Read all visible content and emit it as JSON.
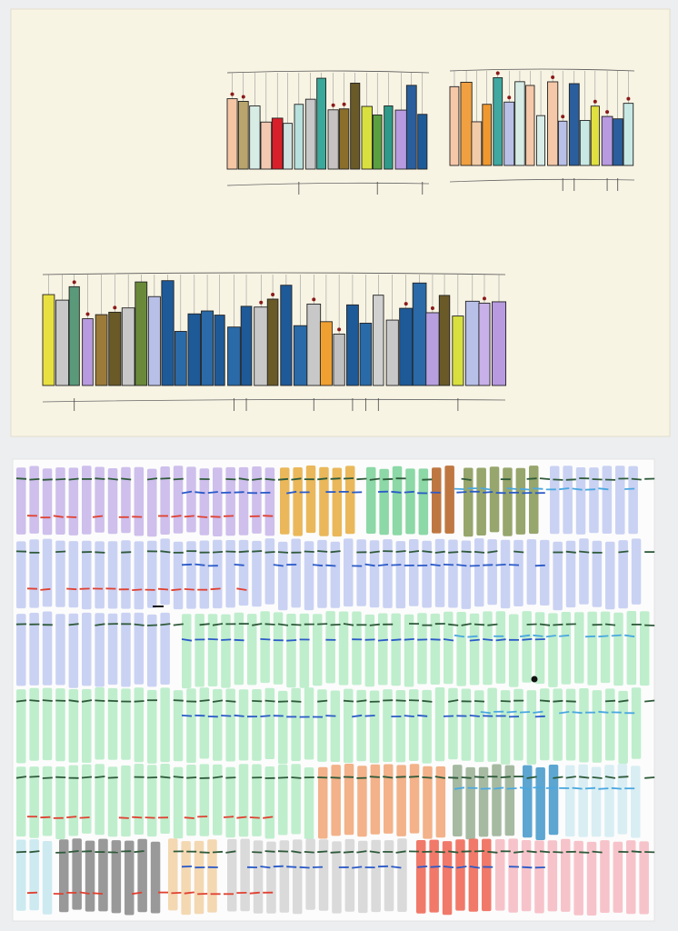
{
  "artwork": {
    "top_sheet": {
      "paper_color": "#f8f4e4",
      "groups": [
        {
          "name": "upper-left-cluster",
          "colors": [
            "#f6c6a4",
            "#b8a46c",
            "#d8ece6",
            "#f2c8b0",
            "#d8202a",
            "#cfe4e0",
            "#b8e0dc",
            "#c8c8c8",
            "#3aa89a",
            "#c7c2c2",
            "#8a6e2a",
            "#6a5a28",
            "#d8e040",
            "#5aa040",
            "#2f9a8a",
            "#b89ae0",
            "#2a5e9c",
            "#1e5a98"
          ]
        },
        {
          "name": "upper-right-cluster",
          "colors": [
            "#f6c8a8",
            "#f0a040",
            "#f2cca8",
            "#f09830",
            "#40a8a0",
            "#b8c0e8",
            "#d8ece6",
            "#f4c8a8",
            "#d8ece8",
            "#f4c8a8",
            "#b8c0e8",
            "#2a5e9c",
            "#c8e8e4",
            "#e0e040",
            "#b89ae0",
            "#2a5e9c",
            "#c8e8e4"
          ]
        },
        {
          "name": "lower-cluster",
          "colors": [
            "#e8e040",
            "#c8c8c8",
            "#5a9a7a",
            "#b89ae0",
            "#9c7a3a",
            "#6a5a28",
            "#c8c8c8",
            "#6a8a3a",
            "#b8c0e8",
            "#1e5a98",
            "#2a6aa8",
            "#1e5a98",
            "#2a6aa8",
            "#1e5a98",
            "#2a6aa8",
            "#1e5a98",
            "#c8c8c8",
            "#6a5a28",
            "#1e5a98",
            "#2a6aa8",
            "#c8c8c8",
            "#f0a030",
            "#c0c0c0",
            "#1e5a98",
            "#2a6aa8",
            "#d0d0d0",
            "#c8c8c8",
            "#1e5a98",
            "#2a6aa8",
            "#b8a0e0",
            "#6a5a28",
            "#d8e040",
            "#b8c0e8",
            "#c8b0e8",
            "#b89ae0"
          ]
        }
      ]
    },
    "bottom_sheet": {
      "paper_color": "#fcfcfc",
      "line_colors": {
        "dark_green": "#2e5a3a",
        "blue": "#2a5ac8",
        "red": "#e04030",
        "light_blue": "#4aa8e0"
      },
      "rows": [
        {
          "segments": [
            [
              "#c9b8ea",
              18,
              305
            ],
            [
              "#e8b048",
              308,
              400
            ],
            [
              "#80d49c",
              403,
              472
            ],
            [
              "#b8682c",
              475,
              506
            ],
            [
              "#8c9c5c",
              510,
              602
            ],
            [
              "#c4cdf2",
              605,
              712
            ]
          ]
        },
        {
          "segments": [
            [
              "#c4cdf2",
              18,
              712
            ]
          ]
        },
        {
          "segments": [
            [
              "#c4cdf2",
              18,
              198
            ],
            [
              "#b8ecc8",
              200,
              715
            ]
          ]
        },
        {
          "segments": [
            [
              "#b8ecc8",
              18,
              715
            ]
          ]
        },
        {
          "segments": [
            [
              "#b8ecc8",
              18,
              350
            ],
            [
              "#f2aa7c",
              350,
              495
            ],
            [
              "#9cb298",
              498,
              572
            ],
            [
              "#4a9ccc",
              575,
              620
            ],
            [
              "#d4ecf2",
              622,
              715
            ]
          ]
        },
        {
          "segments": [
            [
              "#c8e8f0",
              18,
              65
            ],
            [
              "#8e8e8e",
              65,
              185
            ],
            [
              "#f2d4aa",
              185,
              250
            ],
            [
              "#d6d6d6",
              250,
              455
            ],
            [
              "#f06a5a",
              458,
              545
            ],
            [
              "#f6bcc4",
              545,
              715
            ]
          ]
        }
      ]
    }
  }
}
